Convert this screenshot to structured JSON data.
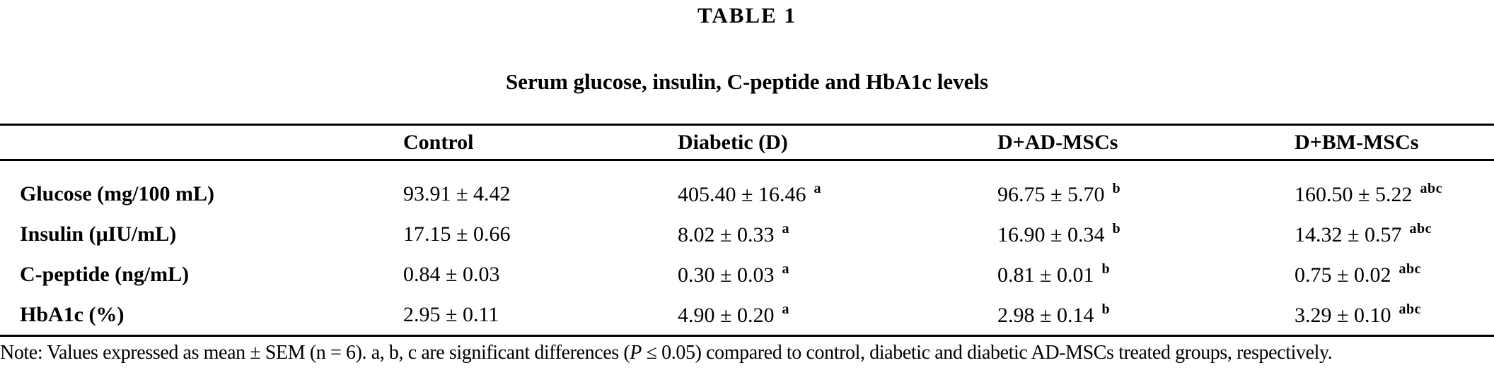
{
  "colors": {
    "background": "#ffffff",
    "ink": "#000000",
    "rule": "#000000"
  },
  "title": "TABLE 1",
  "subtitle": "Serum glucose, insulin, C-peptide and HbA1c levels",
  "table": {
    "columns": [
      "",
      "Control",
      "Diabetic (D)",
      "D+AD-MSCs",
      "D+BM-MSCs"
    ],
    "rows": [
      {
        "label": "Glucose (mg/100 mL)",
        "cells": [
          {
            "value": "93.91 ± 4.42",
            "sup": ""
          },
          {
            "value": "405.40 ± 16.46",
            "sup": "a"
          },
          {
            "value": "96.75 ± 5.70",
            "sup": "b"
          },
          {
            "value": "160.50 ± 5.22",
            "sup": "abc"
          }
        ]
      },
      {
        "label": "Insulin (μIU/mL)",
        "cells": [
          {
            "value": "17.15 ± 0.66",
            "sup": ""
          },
          {
            "value": "8.02 ± 0.33",
            "sup": "a"
          },
          {
            "value": "16.90 ± 0.34",
            "sup": "b"
          },
          {
            "value": "14.32 ± 0.57",
            "sup": "abc"
          }
        ]
      },
      {
        "label": "C-peptide (ng/mL)",
        "cells": [
          {
            "value": "0.84 ± 0.03",
            "sup": ""
          },
          {
            "value": "0.30 ± 0.03",
            "sup": "a"
          },
          {
            "value": "0.81 ± 0.01",
            "sup": "b"
          },
          {
            "value": "0.75 ± 0.02",
            "sup": "abc"
          }
        ]
      },
      {
        "label": "HbA1c (%)",
        "cells": [
          {
            "value": "2.95 ± 0.11",
            "sup": ""
          },
          {
            "value": "4.90 ± 0.20",
            "sup": "a"
          },
          {
            "value": "2.98 ± 0.14",
            "sup": "b"
          },
          {
            "value": "3.29 ± 0.10",
            "sup": "abc"
          }
        ]
      }
    ]
  },
  "note": {
    "part1": "Note: Values expressed as mean ± SEM (n = 6). a, b, c are significant differences (",
    "p_italic": "P",
    "part2": " ≤ 0.05) compared to control, diabetic and diabetic AD-MSCs treated groups, respectively."
  }
}
